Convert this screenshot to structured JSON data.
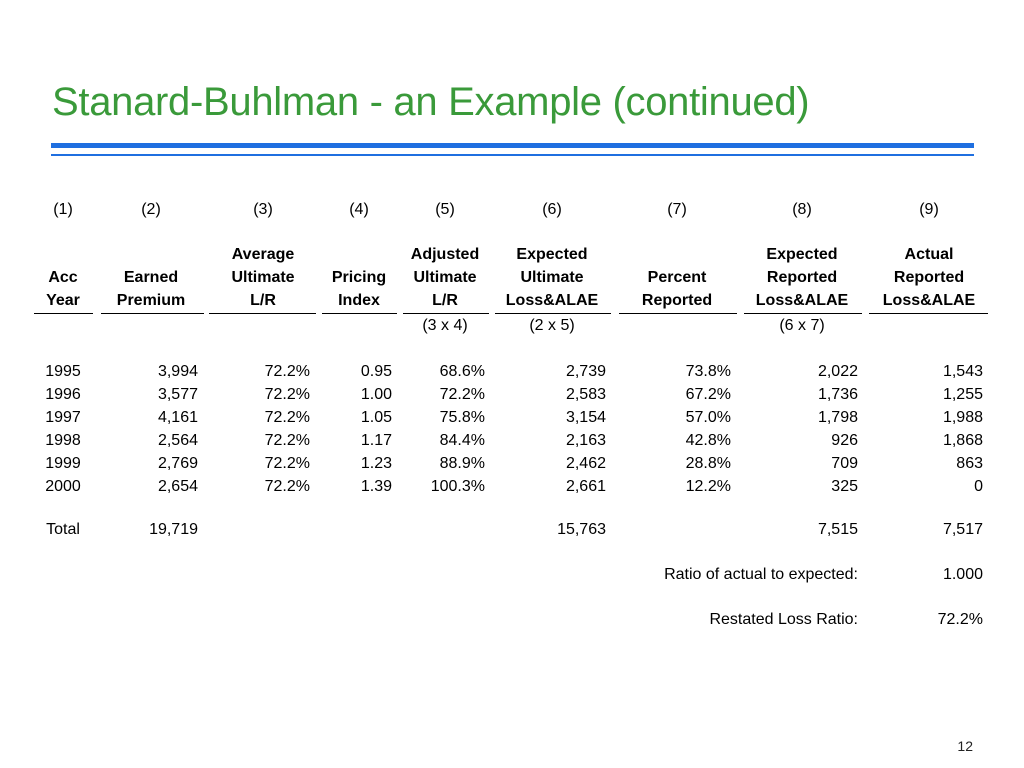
{
  "slide": {
    "title": "Stanard-Buhlman - an Example (continued)",
    "page_number": "12"
  },
  "table": {
    "column_numbers": [
      "(1)",
      "(2)",
      "(3)",
      "(4)",
      "(5)",
      "(6)",
      "(7)",
      "(8)",
      "(9)"
    ],
    "headers": [
      [
        "",
        "Acc",
        "Year"
      ],
      [
        "",
        "Earned",
        "Premium"
      ],
      [
        "Average",
        "Ultimate",
        "L/R"
      ],
      [
        "",
        "Pricing",
        "Index"
      ],
      [
        "Adjusted",
        "Ultimate",
        "L/R"
      ],
      [
        "Expected",
        "Ultimate",
        "Loss&ALAE"
      ],
      [
        "",
        "Percent",
        "Reported"
      ],
      [
        "Expected",
        "Reported",
        "Loss&ALAE"
      ],
      [
        "Actual",
        "Reported",
        "Loss&ALAE"
      ]
    ],
    "formulas": [
      "",
      "",
      "",
      "",
      "(3 x 4)",
      "(2 x 5)",
      "",
      "(6 x 7)",
      ""
    ],
    "rows": [
      [
        "1995",
        "3,994",
        "72.2%",
        "0.95",
        "68.6%",
        "2,739",
        "73.8%",
        "2,022",
        "1,543"
      ],
      [
        "1996",
        "3,577",
        "72.2%",
        "1.00",
        "72.2%",
        "2,583",
        "67.2%",
        "1,736",
        "1,255"
      ],
      [
        "1997",
        "4,161",
        "72.2%",
        "1.05",
        "75.8%",
        "3,154",
        "57.0%",
        "1,798",
        "1,988"
      ],
      [
        "1998",
        "2,564",
        "72.2%",
        "1.17",
        "84.4%",
        "2,163",
        "42.8%",
        "926",
        "1,868"
      ],
      [
        "1999",
        "2,769",
        "72.2%",
        "1.23",
        "88.9%",
        "2,462",
        "28.8%",
        "709",
        "863"
      ],
      [
        "2000",
        "2,654",
        "72.2%",
        "1.39",
        "100.3%",
        "2,661",
        "12.2%",
        "325",
        "0"
      ]
    ],
    "total": [
      "Total",
      "19,719",
      "",
      "",
      "",
      "15,763",
      "",
      "7,515",
      "7,517"
    ],
    "ratio_label": "Ratio of actual to expected:",
    "ratio_value": "1.000",
    "restated_label": "Restated Loss Ratio:",
    "restated_value": "72.2%"
  }
}
